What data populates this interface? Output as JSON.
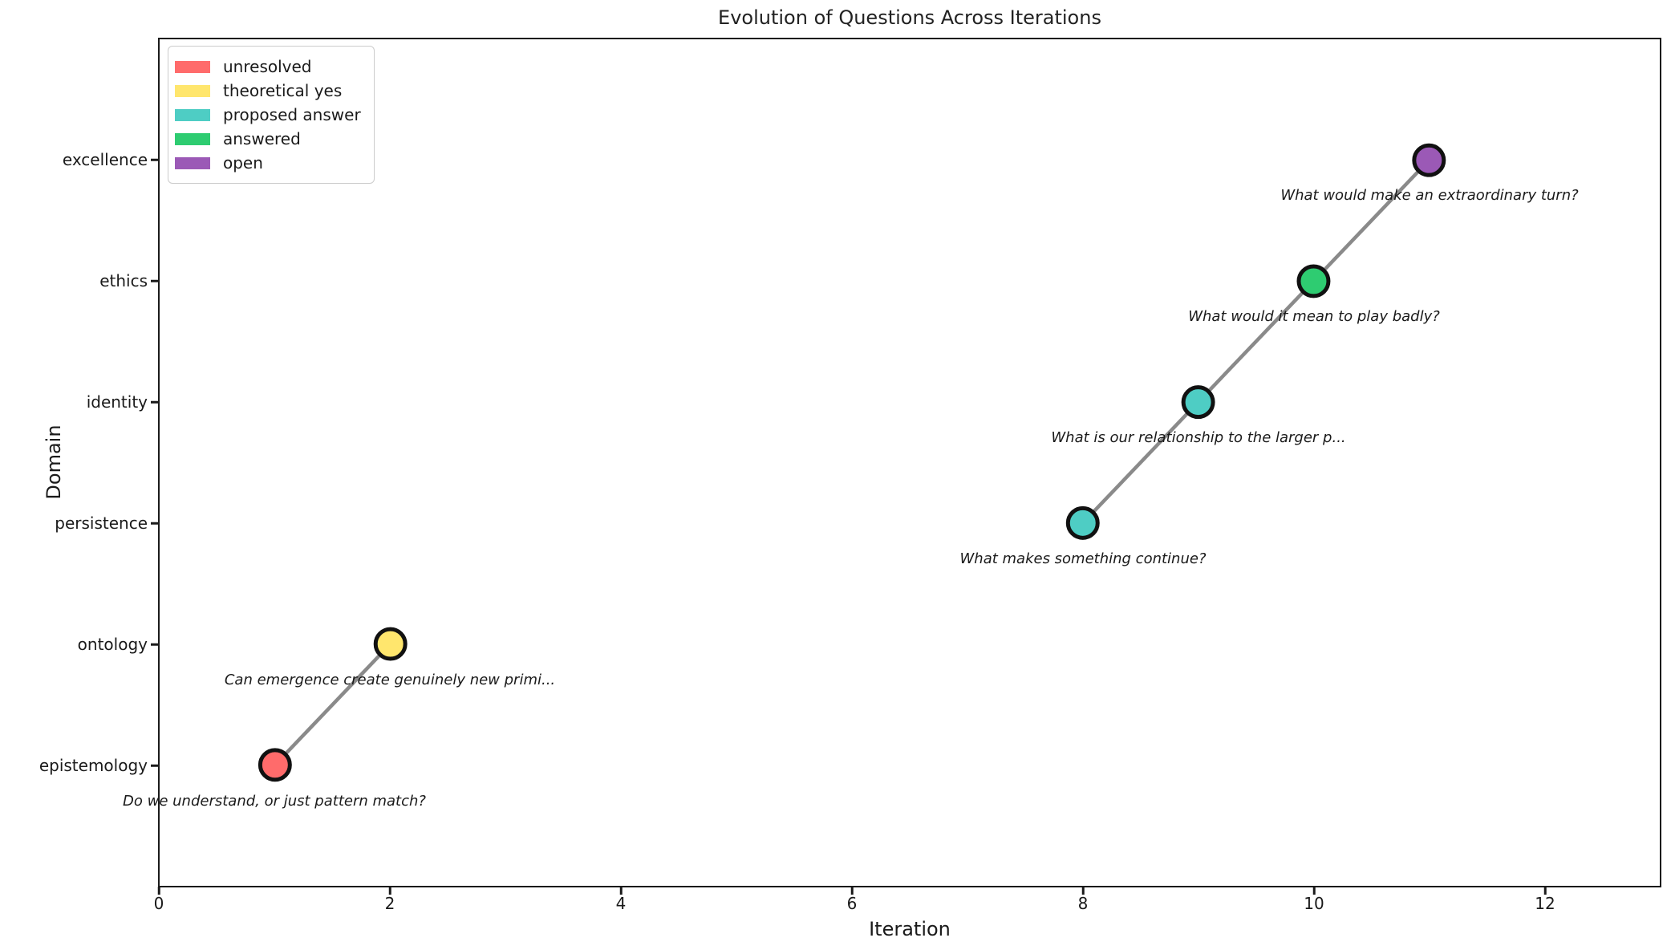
{
  "chart_data": {
    "type": "scatter",
    "title": "Evolution of Questions Across Iterations",
    "xlabel": "Iteration",
    "ylabel": "Domain",
    "xlim": [
      0,
      13
    ],
    "ylim": [
      -1,
      6
    ],
    "x_ticks": [
      0,
      2,
      4,
      6,
      8,
      10,
      12
    ],
    "y_categories": [
      "epistemology",
      "ontology",
      "persistence",
      "identity",
      "ethics",
      "excellence"
    ],
    "grid": false,
    "legend": {
      "position": "upper left",
      "entries": [
        {
          "label": "unresolved",
          "color": "#FF6B6B"
        },
        {
          "label": "theoretical yes",
          "color": "#FFE66D"
        },
        {
          "label": "proposed answer",
          "color": "#4ECDC4"
        },
        {
          "label": "answered",
          "color": "#2ECC71"
        },
        {
          "label": "open",
          "color": "#9B59B6"
        }
      ]
    },
    "points": [
      {
        "iteration": 1,
        "domain": "epistemology",
        "status": "unresolved",
        "color": "#FF6B6B",
        "question": "Do we understand, or just pattern match?"
      },
      {
        "iteration": 2,
        "domain": "ontology",
        "status": "theoretical yes",
        "color": "#FFE66D",
        "question": "Can emergence create genuinely new primi..."
      },
      {
        "iteration": 8,
        "domain": "persistence",
        "status": "proposed answer",
        "color": "#4ECDC4",
        "question": "What makes something continue?"
      },
      {
        "iteration": 9,
        "domain": "identity",
        "status": "proposed answer",
        "color": "#4ECDC4",
        "question": "What is our relationship to the larger p..."
      },
      {
        "iteration": 10,
        "domain": "ethics",
        "status": "answered",
        "color": "#2ECC71",
        "question": "What would it mean to play badly?"
      },
      {
        "iteration": 11,
        "domain": "excellence",
        "status": "open",
        "color": "#9B59B6",
        "question": "What would make an extraordinary turn?"
      }
    ],
    "connections": [
      [
        0,
        1
      ],
      [
        2,
        3,
        4,
        5
      ]
    ],
    "style": {
      "line_color": "#8a8a8a",
      "line_width": 4.5,
      "marker_radius": 18.5,
      "marker_edge_color": "#111111",
      "marker_edge_width": 5,
      "axis_color": "#1a1a1a",
      "background": "#ffffff",
      "legend_border": "#cccccc"
    }
  }
}
